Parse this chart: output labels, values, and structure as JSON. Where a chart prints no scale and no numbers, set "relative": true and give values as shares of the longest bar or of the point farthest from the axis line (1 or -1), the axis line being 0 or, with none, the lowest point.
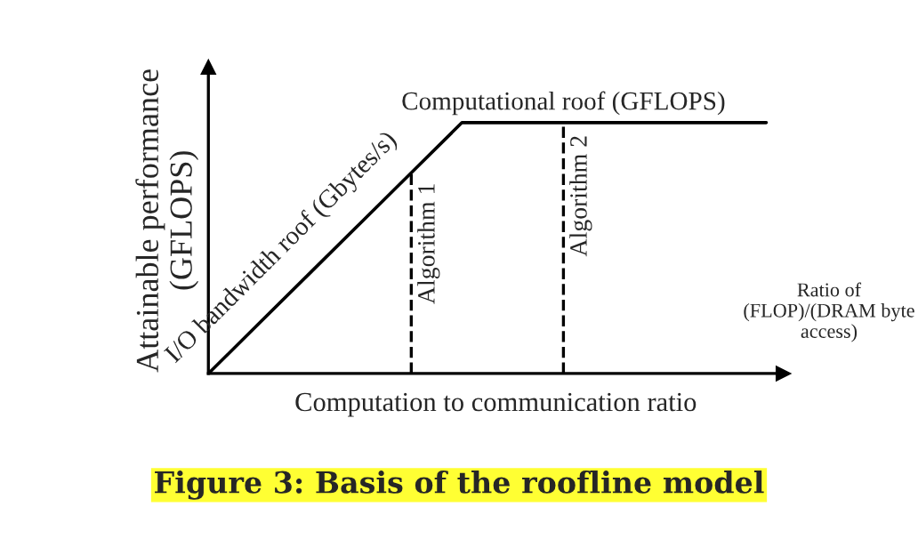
{
  "chart_data": {
    "type": "line",
    "relative": true,
    "title": "Figure 3: Basis of the roofline model",
    "xlabel": "Computation to communication ratio",
    "ylabel": "Attainable performance\n(GFLOPS)",
    "categories": [
      null,
      null,
      null,
      null,
      null,
      null,
      null,
      null,
      null,
      null,
      null,
      null
    ],
    "series": [
      {
        "color": "#000000",
        "values": [
          0,
          0.2,
          0.4,
          0.6,
          0.8,
          1,
          1,
          1,
          1,
          1,
          1,
          1
        ]
      }
    ],
    "annotations": [
      "I/O bandwidth roof (Gbytes/s)",
      "Computational roof (GFLOPS)",
      "Ratio of\n(FLOP)/(DRAM byte\naccess)",
      "Algorithm 1",
      "Algorithm 2"
    ],
    "grid": false,
    "legend": false,
    "line_style": "solid",
    "marker": "none"
  }
}
